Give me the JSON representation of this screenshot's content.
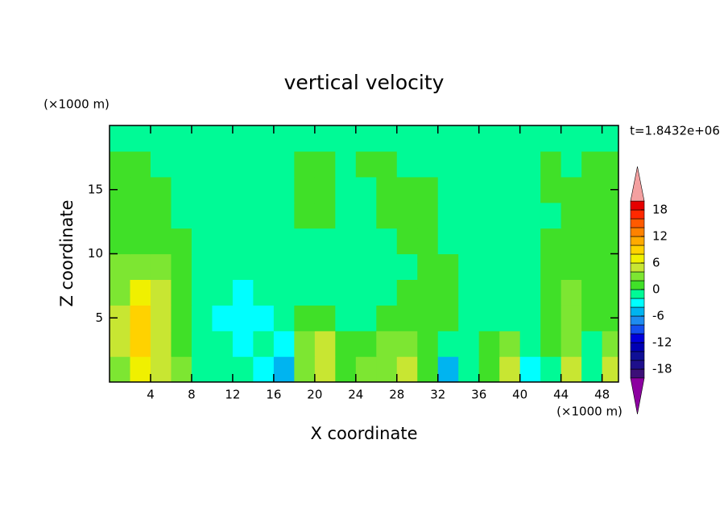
{
  "chart_data": {
    "type": "contour",
    "title": "vertical velocity",
    "x_label": "X coordinate",
    "y_label": "Z coordinate",
    "x_unit": "(×1000 m)",
    "y_unit": "(×1000 m)",
    "time_label": "t=1.8432e+06",
    "xlim": [
      0,
      49.6
    ],
    "ylim": [
      0,
      20
    ],
    "xticks": [
      4,
      8,
      12,
      16,
      20,
      24,
      28,
      32,
      36,
      40,
      44,
      48
    ],
    "yticks": [
      5,
      10,
      15
    ],
    "x": [
      1,
      3,
      5,
      7,
      9,
      11,
      13,
      15,
      17,
      19,
      21,
      23,
      25,
      27,
      29,
      31,
      33,
      35,
      37,
      39,
      41,
      43,
      45,
      47,
      49
    ],
    "y": [
      1,
      3,
      5,
      7,
      9,
      11,
      13,
      15,
      17,
      19
    ],
    "z": [
      [
        2,
        6,
        4,
        2,
        -1,
        -2,
        -1,
        -3,
        -6,
        2,
        5,
        1,
        2,
        3,
        5,
        1,
        -5,
        -2,
        1,
        5,
        -3,
        -1,
        5,
        -2,
        4
      ],
      [
        4,
        8,
        5,
        1,
        -2,
        -2,
        -3,
        -2,
        -3,
        2,
        4,
        1,
        1,
        2,
        3,
        0.5,
        -2,
        -2,
        1,
        3,
        -2,
        1,
        3,
        -1,
        2
      ],
      [
        4,
        8,
        5,
        1,
        -2,
        -3,
        -4,
        -3,
        -2,
        1,
        1,
        -1,
        -1,
        1,
        1,
        1,
        1,
        -1,
        -1,
        -1,
        -1,
        1,
        2,
        1,
        1
      ],
      [
        3,
        6,
        4,
        1,
        -1,
        -2,
        -3,
        -2,
        -1,
        -1,
        -1,
        -1,
        -1,
        -1,
        1,
        1,
        1,
        -1,
        -1,
        -1,
        -1,
        1,
        3,
        1,
        1
      ],
      [
        2,
        3,
        2,
        1,
        -1,
        -2,
        -2,
        -1,
        -1,
        -1,
        -1,
        -1,
        -1,
        -1,
        -1,
        1,
        1,
        -1,
        -1,
        -1,
        -1,
        1,
        1,
        1,
        1
      ],
      [
        1,
        1,
        1,
        1,
        -1,
        -1,
        -1,
        -1,
        -1,
        -1,
        -1,
        -1,
        -1,
        -1,
        1,
        1,
        -1,
        -1,
        -1,
        -1,
        -1,
        1,
        1,
        1,
        1
      ],
      [
        1,
        1,
        1,
        -1,
        -1,
        -1,
        -1,
        -1,
        -1,
        1,
        1,
        -1,
        -1,
        1,
        1,
        1,
        -1,
        -1,
        -1,
        -1,
        -1,
        -1,
        1,
        1,
        1
      ],
      [
        1,
        1,
        1,
        -1,
        -1,
        -1,
        -1,
        -1,
        -1,
        1,
        1,
        -1,
        -1,
        1,
        1,
        1,
        -1,
        -1,
        -1,
        -1,
        -1,
        1,
        1,
        1,
        1
      ],
      [
        1,
        1,
        -1,
        -1,
        -1,
        -1,
        -1,
        -1,
        -1,
        1,
        1,
        -1,
        1,
        1,
        -1,
        -1,
        -1,
        -1,
        -1,
        -1,
        -1,
        1,
        -1,
        1,
        1
      ],
      [
        -1,
        -1,
        -1,
        -1,
        -1,
        -1,
        -1,
        -1,
        -1,
        -1,
        -1,
        -1,
        -1,
        -1,
        -1,
        -1,
        -1,
        -1,
        -1,
        -1,
        -1,
        -1,
        -1,
        -1,
        -1
      ]
    ],
    "levels": [
      -20,
      -18,
      -16,
      -14,
      -12,
      -10,
      -8,
      -6,
      -4,
      -2,
      0,
      2,
      4,
      6,
      8,
      10,
      12,
      14,
      16,
      18,
      20
    ],
    "colors": [
      "#3c0f78",
      "#1e0f8c",
      "#0f0f96",
      "#0000b4",
      "#0000dc",
      "#1450f0",
      "#1e8cf0",
      "#00b4f0",
      "#00ffff",
      "#00fa96",
      "#40e028",
      "#7de632",
      "#c8e632",
      "#f0f000",
      "#ffd200",
      "#ffaa00",
      "#ff8200",
      "#ff5a00",
      "#ff2800",
      "#e60000"
    ],
    "extend_colors": [
      "#8c00a0",
      "#f4a0a0"
    ],
    "colorbar_ticks": [
      -18,
      -12,
      -6,
      0,
      6,
      12,
      18
    ]
  }
}
